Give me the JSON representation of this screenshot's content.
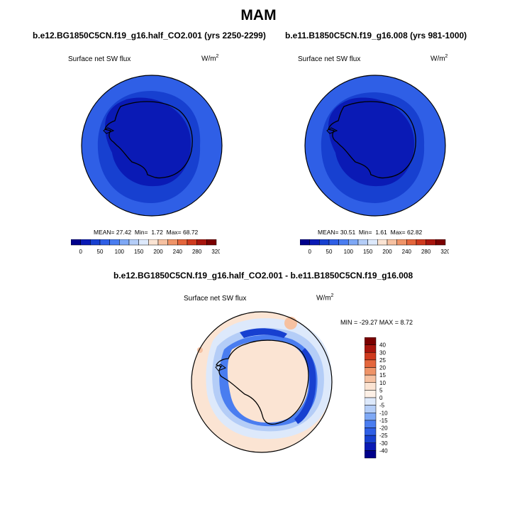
{
  "season": "MAM",
  "panels": [
    {
      "case_title": "b.e12.BG1850C5CN.f19_g16.half_CO2.001 (yrs 2250-2299)",
      "variable": "Surface net SW flux",
      "units_base": "W/m",
      "units_exp": "2",
      "stats_mean_label": "MEAN=",
      "stats_mean": "27.42",
      "stats_min_label": "Min=",
      "stats_min": "1.72",
      "stats_max_label": "Max=",
      "stats_max": "68.72"
    },
    {
      "case_title": "b.e11.B1850C5CN.f19_g16.008 (yrs 981-1000)",
      "variable": "Surface net SW flux",
      "units_base": "W/m",
      "units_exp": "2",
      "stats_mean_label": "MEAN=",
      "stats_mean": "30.51",
      "stats_min_label": "Min=",
      "stats_min": "1.61",
      "stats_max_label": "Max=",
      "stats_max": "62.82"
    }
  ],
  "colorbar_horizontal": {
    "labels": [
      "0",
      "50",
      "100",
      "150",
      "200",
      "240",
      "280",
      "320"
    ],
    "colors": [
      "#00008b",
      "#0a1ab5",
      "#1740d0",
      "#2f5fe6",
      "#4a7df0",
      "#7ea8f5",
      "#b4cdf7",
      "#dde9fb",
      "#fbe4d3",
      "#f6c1a1",
      "#ef9468",
      "#e4663c",
      "#cf3a1e",
      "#a8150d",
      "#7a0000"
    ]
  },
  "difference": {
    "title": "b.e12.BG1850C5CN.f19_g16.half_CO2.001 - b.e11.B1850C5CN.f19_g16.008",
    "variable": "Surface net SW flux",
    "units_base": "W/m",
    "units_exp": "2",
    "minmax": "MIN = -29.27 MAX =   8.72"
  },
  "colorbar_vertical": {
    "labels": [
      "40",
      "30",
      "25",
      "20",
      "15",
      "10",
      "5",
      "0",
      "-5",
      "-10",
      "-15",
      "-20",
      "-25",
      "-30",
      "-40"
    ],
    "colors": [
      "#7a0000",
      "#a8150d",
      "#cf3a1e",
      "#e4663c",
      "#ef9468",
      "#f6c1a1",
      "#fbe4d3",
      "#fdf0e6",
      "#dde9fb",
      "#b4cdf7",
      "#7ea8f5",
      "#4a7df0",
      "#2f5fe6",
      "#1740d0",
      "#0a1ab5",
      "#00008b"
    ]
  },
  "map_colors": {
    "outer_ring": "#2f5fe6",
    "mid_ring": "#1740d0",
    "inner_dark": "#0a1ab5",
    "diff_background": "#fbe4d3",
    "diff_ring_light": "#dde9fb",
    "diff_ring_mid": "#b4cdf7",
    "diff_ring_strong": "#4a7df0",
    "diff_ring_deep": "#1740d0"
  }
}
